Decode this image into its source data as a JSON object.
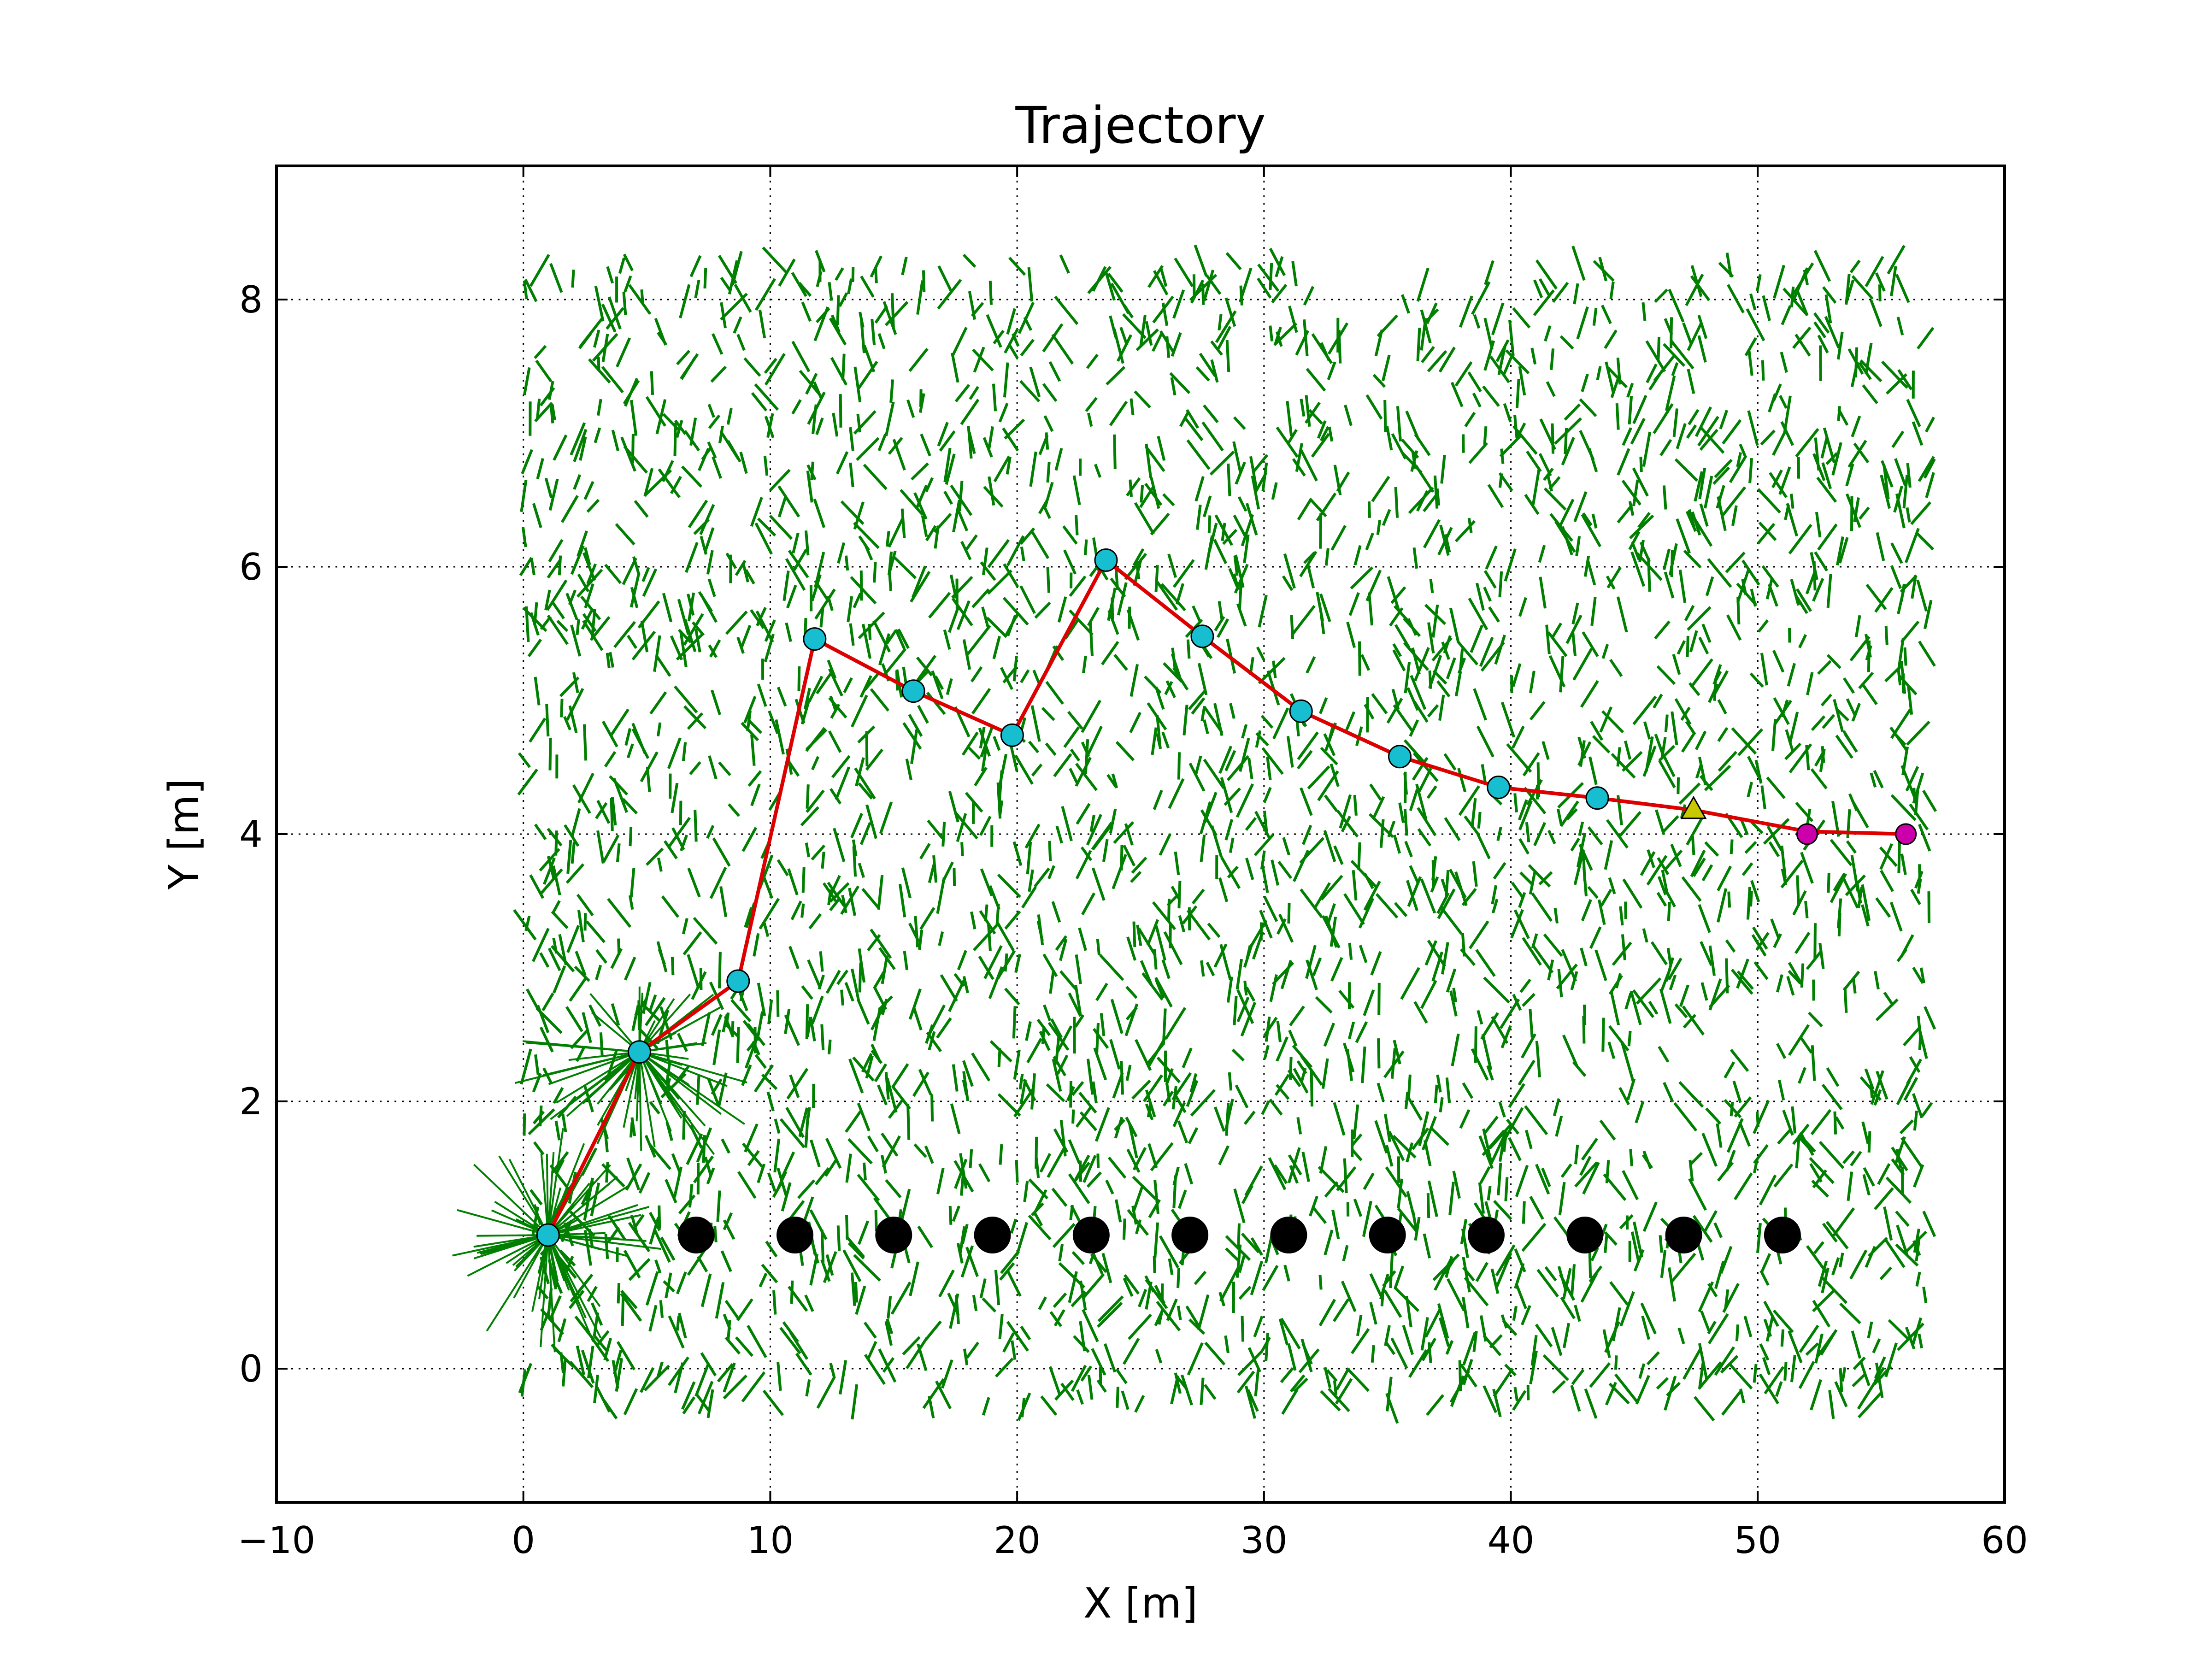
{
  "chart_data": {
    "type": "scatter",
    "title": "Trajectory",
    "xlabel": "X [m]",
    "ylabel": "Y [m]",
    "xlim": [
      -10,
      60
    ],
    "ylim": [
      -1,
      9
    ],
    "xticks": [
      -10,
      0,
      10,
      20,
      30,
      40,
      50,
      60
    ],
    "xtick_labels": [
      "−10",
      "0",
      "10",
      "20",
      "30",
      "40",
      "50",
      "60"
    ],
    "yticks": [
      0,
      2,
      4,
      6,
      8
    ],
    "ytick_labels": [
      "0",
      "2",
      "4",
      "6",
      "8"
    ],
    "grid": true,
    "colors": {
      "particles": "#007f00",
      "trajectory": "#dd0000",
      "waypoint_fill": "#17becf",
      "estimate_fill": "#c8c800",
      "goal_fill": "#cc00aa",
      "landmark": "#000000"
    },
    "series": [
      {
        "type": "line",
        "x": [
          1.0,
          4.7,
          8.7,
          11.8,
          15.8,
          19.8,
          23.6,
          27.5,
          31.5,
          35.5,
          39.5,
          43.5,
          47.4,
          52.0,
          56.0
        ],
        "y": [
          1.0,
          2.37,
          2.9,
          5.46,
          5.07,
          4.74,
          6.05,
          5.48,
          4.92,
          4.58,
          4.35,
          4.27,
          4.18,
          4.02,
          4.0
        ]
      },
      {
        "type": "markers",
        "x": [
          1.0,
          4.7,
          8.7,
          11.8,
          15.8,
          19.8,
          23.6,
          27.5,
          31.5,
          35.5,
          39.5,
          43.5
        ],
        "y": [
          1.0,
          2.37,
          2.9,
          5.46,
          5.07,
          4.74,
          6.05,
          5.48,
          4.92,
          4.58,
          4.35,
          4.27
        ]
      },
      {
        "type": "triangle",
        "x": [
          47.4
        ],
        "y": [
          4.18
        ]
      },
      {
        "type": "goal",
        "x": [
          52.0,
          56.0
        ],
        "y": [
          4.0,
          4.0
        ]
      },
      {
        "type": "landmarks",
        "x": [
          7,
          11,
          15,
          19,
          23,
          27,
          31,
          35,
          39,
          43,
          47,
          51
        ],
        "y": [
          1,
          1,
          1,
          1,
          1,
          1,
          1,
          1,
          1,
          1,
          1,
          1
        ]
      }
    ],
    "particle_cloud": {
      "x_range": [
        0,
        57
      ],
      "y_range": [
        -0.3,
        8.3
      ],
      "count": 3200,
      "seed": 7
    }
  }
}
